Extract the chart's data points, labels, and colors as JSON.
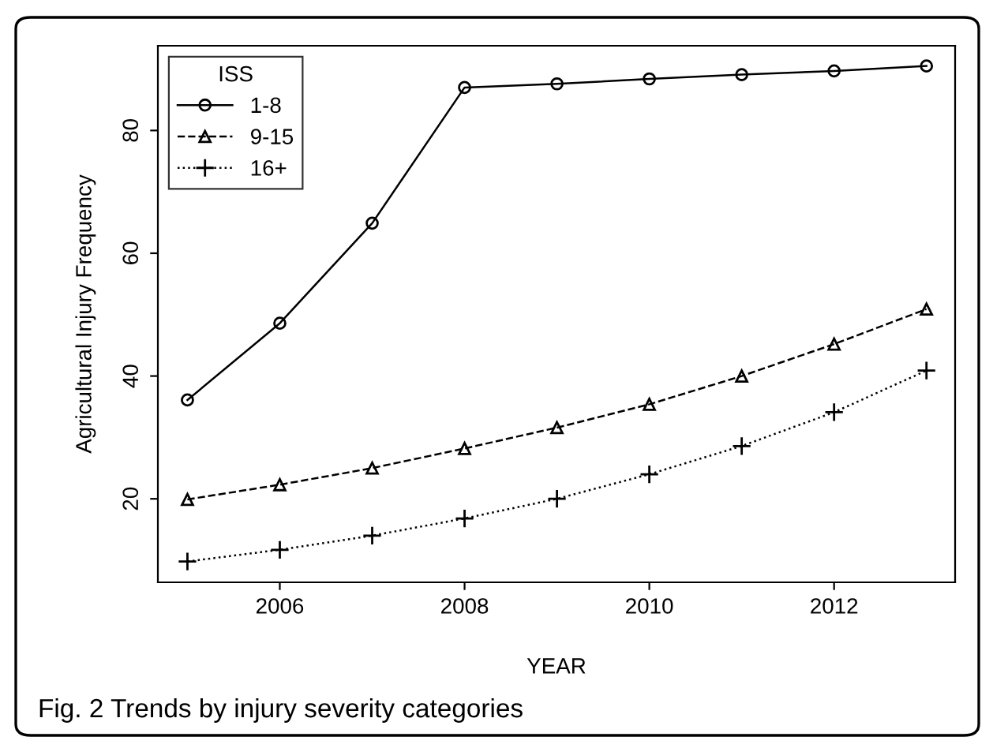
{
  "chart_data": {
    "type": "line",
    "xlabel": "YEAR",
    "ylabel": "Agricultural Injury Frequency",
    "legend_title": "ISS",
    "legend": "top left",
    "grid": false,
    "x": [
      2005,
      2006,
      2007,
      2008,
      2009,
      2010,
      2011,
      2012,
      2013
    ],
    "xlim": [
      2004.68,
      2013.31
    ],
    "xticks": [
      2006,
      2008,
      2010,
      2012
    ],
    "ylim": [
      6.4,
      93.8
    ],
    "yticks": [
      20,
      40,
      60,
      80
    ],
    "series": [
      {
        "name": "1-8",
        "color": "#000000",
        "marker": "circle",
        "line_style": "solid",
        "values": [
          36.1,
          48.6,
          64.9,
          87.0,
          87.6,
          88.4,
          89.1,
          89.7,
          90.5
        ]
      },
      {
        "name": "9-15",
        "color": "#000000",
        "marker": "triangle",
        "line_style": "dashed",
        "values": [
          19.9,
          22.3,
          25.0,
          28.2,
          31.6,
          35.4,
          40.0,
          45.2,
          50.9
        ]
      },
      {
        "name": "16+",
        "color": "#000000",
        "marker": "cross",
        "line_style": "dotted",
        "values": [
          9.8,
          11.7,
          14.0,
          16.8,
          20.0,
          24.0,
          28.6,
          34.1,
          40.9
        ]
      }
    ],
    "annotations": [
      "Fig. 2 Trends by injury severity categories"
    ]
  }
}
